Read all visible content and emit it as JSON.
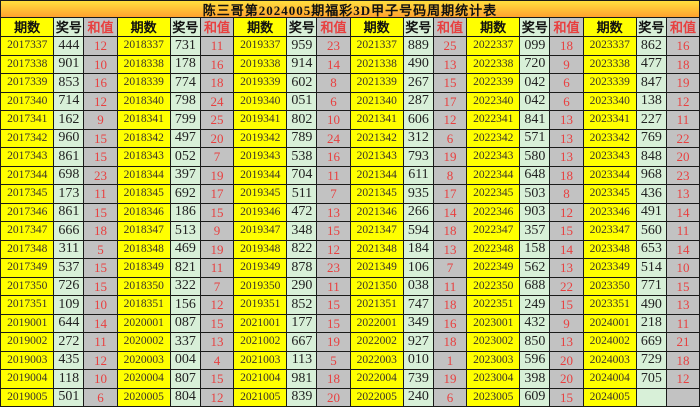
{
  "colors": {
    "title_gradient_top": "#ffdf3f",
    "title_gradient_bottom": "#ffa22f",
    "period_bg": "#ffff00",
    "number_bg": "#d8f0d8",
    "sum_bg": "#c2c2c2",
    "sum_text": "#e84040",
    "grid_line": "#1a1a1a"
  },
  "chart_data": {
    "type": "table",
    "title": "陈三哥第2024005期福彩3D甲子号码周期统计表",
    "column_headers": [
      "期数",
      "奖号",
      "和值"
    ],
    "header_repeat": 6,
    "legend_position": "none",
    "grid": true,
    "groups": [
      {
        "rows": [
          [
            "2017337",
            "444",
            "12"
          ],
          [
            "2017338",
            "901",
            "10"
          ],
          [
            "2017339",
            "853",
            "16"
          ],
          [
            "2017340",
            "714",
            "12"
          ],
          [
            "2017341",
            "162",
            "9"
          ],
          [
            "2017342",
            "960",
            "15"
          ],
          [
            "2017343",
            "861",
            "15"
          ],
          [
            "2017344",
            "698",
            "23"
          ],
          [
            "2017345",
            "173",
            "11"
          ],
          [
            "2017346",
            "861",
            "15"
          ],
          [
            "2017347",
            "666",
            "18"
          ],
          [
            "2017348",
            "311",
            "5"
          ],
          [
            "2017349",
            "537",
            "15"
          ],
          [
            "2017350",
            "726",
            "15"
          ],
          [
            "2017351",
            "109",
            "10"
          ],
          [
            "2019001",
            "644",
            "14"
          ],
          [
            "2019002",
            "272",
            "11"
          ],
          [
            "2019003",
            "435",
            "12"
          ],
          [
            "2019004",
            "118",
            "10"
          ],
          [
            "2019005",
            "501",
            "6"
          ]
        ]
      },
      {
        "rows": [
          [
            "2018337",
            "731",
            "11"
          ],
          [
            "2018338",
            "178",
            "16"
          ],
          [
            "2018339",
            "774",
            "18"
          ],
          [
            "2018340",
            "798",
            "24"
          ],
          [
            "2018341",
            "799",
            "25"
          ],
          [
            "2018342",
            "497",
            "20"
          ],
          [
            "2018343",
            "052",
            "7"
          ],
          [
            "2018344",
            "397",
            "19"
          ],
          [
            "2018345",
            "692",
            "17"
          ],
          [
            "2018346",
            "186",
            "15"
          ],
          [
            "2018347",
            "513",
            "9"
          ],
          [
            "2018348",
            "469",
            "19"
          ],
          [
            "2018349",
            "821",
            "11"
          ],
          [
            "2018350",
            "322",
            "7"
          ],
          [
            "2018351",
            "156",
            "12"
          ],
          [
            "2020001",
            "087",
            "15"
          ],
          [
            "2020002",
            "337",
            "13"
          ],
          [
            "2020003",
            "004",
            "4"
          ],
          [
            "2020004",
            "807",
            "15"
          ],
          [
            "2020005",
            "804",
            "12"
          ]
        ]
      },
      {
        "rows": [
          [
            "2019337",
            "959",
            "23"
          ],
          [
            "2019338",
            "914",
            "14"
          ],
          [
            "2019339",
            "602",
            "8"
          ],
          [
            "2019340",
            "051",
            "6"
          ],
          [
            "2019341",
            "802",
            "10"
          ],
          [
            "2019342",
            "789",
            "24"
          ],
          [
            "2019343",
            "538",
            "16"
          ],
          [
            "2019344",
            "704",
            "11"
          ],
          [
            "2019345",
            "511",
            "7"
          ],
          [
            "2019346",
            "472",
            "13"
          ],
          [
            "2019347",
            "348",
            "15"
          ],
          [
            "2019348",
            "822",
            "12"
          ],
          [
            "2019349",
            "878",
            "23"
          ],
          [
            "2019350",
            "290",
            "11"
          ],
          [
            "2019351",
            "852",
            "15"
          ],
          [
            "2021001",
            "177",
            "15"
          ],
          [
            "2021002",
            "667",
            "19"
          ],
          [
            "2021003",
            "113",
            "5"
          ],
          [
            "2021004",
            "981",
            "18"
          ],
          [
            "2021005",
            "839",
            "20"
          ]
        ]
      },
      {
        "rows": [
          [
            "2021337",
            "889",
            "25"
          ],
          [
            "2021338",
            "490",
            "13"
          ],
          [
            "2021339",
            "267",
            "15"
          ],
          [
            "2021340",
            "287",
            "17"
          ],
          [
            "2021341",
            "606",
            "12"
          ],
          [
            "2021342",
            "312",
            "6"
          ],
          [
            "2021343",
            "793",
            "19"
          ],
          [
            "2021344",
            "611",
            "8"
          ],
          [
            "2021345",
            "935",
            "17"
          ],
          [
            "2021346",
            "266",
            "14"
          ],
          [
            "2021347",
            "594",
            "18"
          ],
          [
            "2021348",
            "184",
            "13"
          ],
          [
            "2021349",
            "106",
            "7"
          ],
          [
            "2021350",
            "038",
            "11"
          ],
          [
            "2021351",
            "747",
            "18"
          ],
          [
            "2022001",
            "349",
            "16"
          ],
          [
            "2022002",
            "927",
            "18"
          ],
          [
            "2022003",
            "010",
            "1"
          ],
          [
            "2022004",
            "739",
            "19"
          ],
          [
            "2022005",
            "240",
            "6"
          ]
        ]
      },
      {
        "rows": [
          [
            "2022337",
            "099",
            "18"
          ],
          [
            "2022338",
            "720",
            "9"
          ],
          [
            "2022339",
            "042",
            "6"
          ],
          [
            "2022340",
            "042",
            "6"
          ],
          [
            "2022341",
            "841",
            "13"
          ],
          [
            "2022342",
            "571",
            "13"
          ],
          [
            "2022343",
            "580",
            "13"
          ],
          [
            "2022344",
            "648",
            "18"
          ],
          [
            "2022345",
            "503",
            "8"
          ],
          [
            "2022346",
            "903",
            "12"
          ],
          [
            "2022347",
            "357",
            "15"
          ],
          [
            "2022348",
            "158",
            "14"
          ],
          [
            "2022349",
            "562",
            "13"
          ],
          [
            "2022350",
            "688",
            "22"
          ],
          [
            "2022351",
            "249",
            "15"
          ],
          [
            "2023001",
            "432",
            "9"
          ],
          [
            "2023002",
            "850",
            "13"
          ],
          [
            "2023003",
            "596",
            "20"
          ],
          [
            "2023004",
            "398",
            "20"
          ],
          [
            "2023005",
            "609",
            "15"
          ]
        ]
      },
      {
        "rows": [
          [
            "2023337",
            "862",
            "16"
          ],
          [
            "2023338",
            "477",
            "18"
          ],
          [
            "2023339",
            "847",
            "19"
          ],
          [
            "2023340",
            "138",
            "12"
          ],
          [
            "2023341",
            "227",
            "11"
          ],
          [
            "2023342",
            "769",
            "22"
          ],
          [
            "2023343",
            "848",
            "20"
          ],
          [
            "2023344",
            "968",
            "23"
          ],
          [
            "2023345",
            "436",
            "13"
          ],
          [
            "2023346",
            "491",
            "14"
          ],
          [
            "2023347",
            "560",
            "11"
          ],
          [
            "2023348",
            "653",
            "14"
          ],
          [
            "2023349",
            "514",
            "10"
          ],
          [
            "2023350",
            "771",
            "15"
          ],
          [
            "2023351",
            "490",
            "13"
          ],
          [
            "2024001",
            "218",
            "11"
          ],
          [
            "2024002",
            "669",
            "21"
          ],
          [
            "2024003",
            "729",
            "18"
          ],
          [
            "2024004",
            "705",
            "12"
          ],
          [
            "2024005",
            "",
            ""
          ]
        ]
      }
    ]
  }
}
